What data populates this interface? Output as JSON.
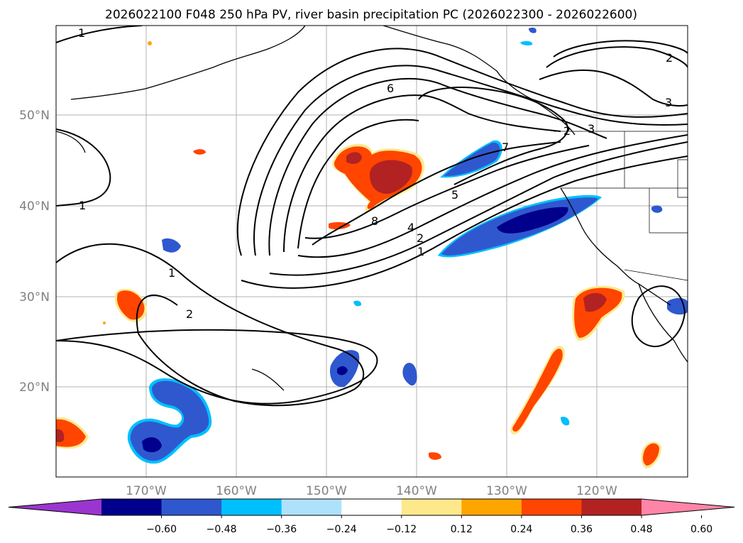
{
  "title": "2026022100 F048 250 hPa PV, river basin precipitation PC (2026022300 - 2026022600)",
  "map": {
    "lat_labels": [
      "50°N",
      "40°N",
      "30°N",
      "20°N"
    ],
    "lon_labels": [
      "170°W",
      "160°W",
      "150°W",
      "140°W",
      "130°W",
      "120°W"
    ],
    "pv_contour_labels": [
      "1",
      "2",
      "3",
      "6",
      "7",
      "5",
      "4",
      "2",
      "1",
      "8",
      "1",
      "1",
      "2",
      "3",
      "2"
    ],
    "contour_color": "#000000",
    "coast_color": "#000000",
    "grid_color": "#b0b0b0"
  },
  "colorbar": {
    "ticks": [
      "−0.60",
      "−0.48",
      "−0.36",
      "−0.24",
      "−0.12",
      "0.12",
      "0.24",
      "0.36",
      "0.48",
      "0.60"
    ],
    "colors": [
      "#9b35cf",
      "#00008c",
      "#2f58cf",
      "#00bfff",
      "#aee2fb",
      "#ffffff",
      "#fde98b",
      "#ffa500",
      "#ff4500",
      "#b22222",
      "#ff85a8"
    ]
  }
}
